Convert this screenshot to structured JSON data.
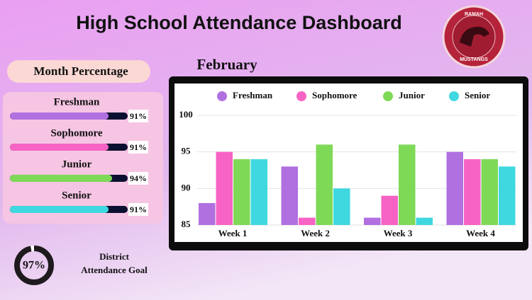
{
  "header": {
    "title": "High School Attendance Dashboard"
  },
  "logo": {
    "top": "RAMAH",
    "bottom": "MUSTANGS"
  },
  "month_percentage": {
    "title": "Month Percentage",
    "items": [
      {
        "name": "Freshman",
        "value": 91,
        "label": "91%",
        "color": "#b070e0"
      },
      {
        "name": "Sophomore",
        "value": 91,
        "label": "91%",
        "color": "#f763c4"
      },
      {
        "name": "Junior",
        "value": 94,
        "label": "94%",
        "color": "#7ed957"
      },
      {
        "name": "Senior",
        "value": 91,
        "label": "91%",
        "color": "#3fd8e0"
      }
    ]
  },
  "goal": {
    "value": 97,
    "label": "97%",
    "text": [
      "District",
      "Attendance Goal"
    ]
  },
  "chart_data": {
    "type": "bar",
    "title": "February",
    "categories": [
      "Week 1",
      "Week 2",
      "Week 3",
      "Week 4"
    ],
    "series": [
      {
        "name": "Freshman",
        "color": "#b070e0",
        "values": [
          88,
          93,
          86,
          95
        ]
      },
      {
        "name": "Sophomore",
        "color": "#f763c4",
        "values": [
          95,
          86,
          89,
          94
        ]
      },
      {
        "name": "Junior",
        "color": "#7ed957",
        "values": [
          94,
          96,
          96,
          94
        ]
      },
      {
        "name": "Senior",
        "color": "#3fd8e0",
        "values": [
          94,
          90,
          86,
          93
        ]
      }
    ],
    "ylim": [
      85,
      100
    ],
    "yticks": [
      85,
      90,
      95,
      100
    ],
    "grid": true,
    "legend": "top"
  }
}
